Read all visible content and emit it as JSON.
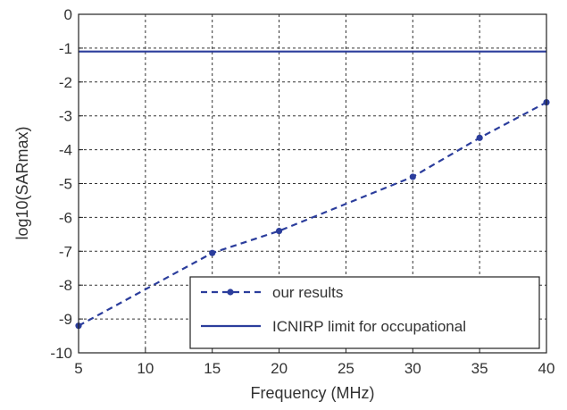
{
  "chart_data": {
    "type": "line",
    "title": "",
    "xlabel": "Frequency (MHz)",
    "ylabel": "log10(SARmax)",
    "xlim": [
      5,
      40
    ],
    "ylim": [
      -10,
      0
    ],
    "xticks": [
      5,
      10,
      15,
      20,
      25,
      30,
      35,
      40
    ],
    "yticks": [
      0,
      -1,
      -2,
      -3,
      -4,
      -5,
      -6,
      -7,
      -8,
      -9,
      -10
    ],
    "grid": true,
    "legend_position": "bottom-right",
    "series": [
      {
        "name": "our results",
        "style": "dashed-marker",
        "color": "#2b3d9c",
        "x": [
          5,
          15,
          20,
          30,
          35,
          40
        ],
        "y": [
          -9.2,
          -7.05,
          -6.4,
          -4.8,
          -3.65,
          -2.6
        ]
      },
      {
        "name": "ICNIRP limit for occupational",
        "style": "solid",
        "color": "#2b3d9c",
        "x": [
          5,
          40
        ],
        "y": [
          -1.1,
          -1.1
        ]
      }
    ]
  }
}
